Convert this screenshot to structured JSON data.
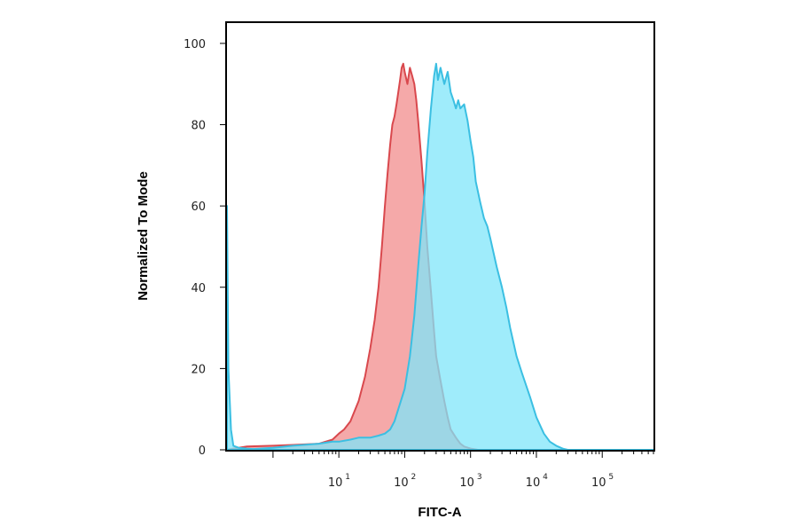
{
  "chart_data": {
    "type": "area",
    "title": "",
    "xlabel": "FITC-A",
    "ylabel": "Normalized To Mode",
    "x_scale": "log",
    "xlim": [
      0.2,
      600000
    ],
    "ylim": [
      0,
      105
    ],
    "grid": false,
    "legend": "none",
    "x_ticks": [
      {
        "base": "10",
        "exp": "1",
        "value": 10
      },
      {
        "base": "10",
        "exp": "2",
        "value": 100
      },
      {
        "base": "10",
        "exp": "3",
        "value": 1000
      },
      {
        "base": "10",
        "exp": "4",
        "value": 10000
      },
      {
        "base": "10",
        "exp": "5",
        "value": 100000
      }
    ],
    "y_ticks": [
      {
        "label": "0",
        "value": 0
      },
      {
        "label": "20",
        "value": 20
      },
      {
        "label": "40",
        "value": 40
      },
      {
        "label": "60",
        "value": 60
      },
      {
        "label": "80",
        "value": 80
      },
      {
        "label": "100",
        "value": 100
      }
    ],
    "series": [
      {
        "fill": "#f28c8c",
        "stroke": "#d9484d",
        "opacity": 0.75,
        "x": [
          0.2,
          0.25,
          0.3,
          0.4,
          1,
          2,
          5,
          8,
          10,
          12,
          15,
          20,
          25,
          30,
          35,
          40,
          45,
          50,
          55,
          60,
          65,
          70,
          75,
          80,
          85,
          90,
          95,
          100,
          110,
          120,
          130,
          140,
          150,
          160,
          180,
          200,
          220,
          250,
          280,
          300,
          350,
          400,
          450,
          500,
          600,
          700,
          800,
          1000,
          1300
        ],
        "y": [
          0,
          0.3,
          0.5,
          0.8,
          1,
          1.2,
          1.5,
          2.5,
          4,
          5,
          7,
          12,
          18,
          25,
          32,
          40,
          50,
          60,
          68,
          75,
          80,
          82,
          85,
          88,
          91,
          94,
          95,
          93,
          90,
          94,
          92,
          90,
          86,
          81,
          71,
          61,
          50,
          39,
          29,
          23,
          17,
          12,
          8,
          5,
          3,
          1.5,
          0.8,
          0.3,
          0
        ]
      },
      {
        "fill": "#7fe6fa",
        "stroke": "#3bbfe2",
        "opacity": 0.75,
        "x": [
          0.2,
          0.21,
          0.23,
          0.25,
          0.3,
          0.4,
          0.5,
          1,
          2,
          5,
          8,
          10,
          15,
          20,
          30,
          40,
          50,
          60,
          70,
          80,
          100,
          120,
          140,
          160,
          180,
          200,
          220,
          250,
          280,
          300,
          320,
          350,
          400,
          450,
          500,
          550,
          600,
          650,
          700,
          800,
          900,
          1000,
          1100,
          1200,
          1400,
          1600,
          1800,
          2000,
          2500,
          3000,
          3500,
          4000,
          5000,
          6000,
          8000,
          10000,
          13000,
          16000,
          20000,
          25000,
          30000,
          600000
        ],
        "y": [
          60,
          20,
          5,
          1,
          0.5,
          0.3,
          0.2,
          0.5,
          1,
          1.5,
          2,
          2,
          2.5,
          3,
          3,
          3.5,
          4,
          5,
          7,
          10,
          15,
          23,
          33,
          45,
          55,
          63,
          73,
          84,
          92,
          95,
          91,
          94,
          90,
          93,
          88,
          86,
          84,
          86,
          84,
          85,
          81,
          76,
          72,
          66,
          61,
          57,
          55,
          52,
          45,
          40,
          35,
          30,
          23,
          19,
          13,
          8,
          4,
          2,
          1,
          0.3,
          0,
          0
        ]
      }
    ]
  }
}
